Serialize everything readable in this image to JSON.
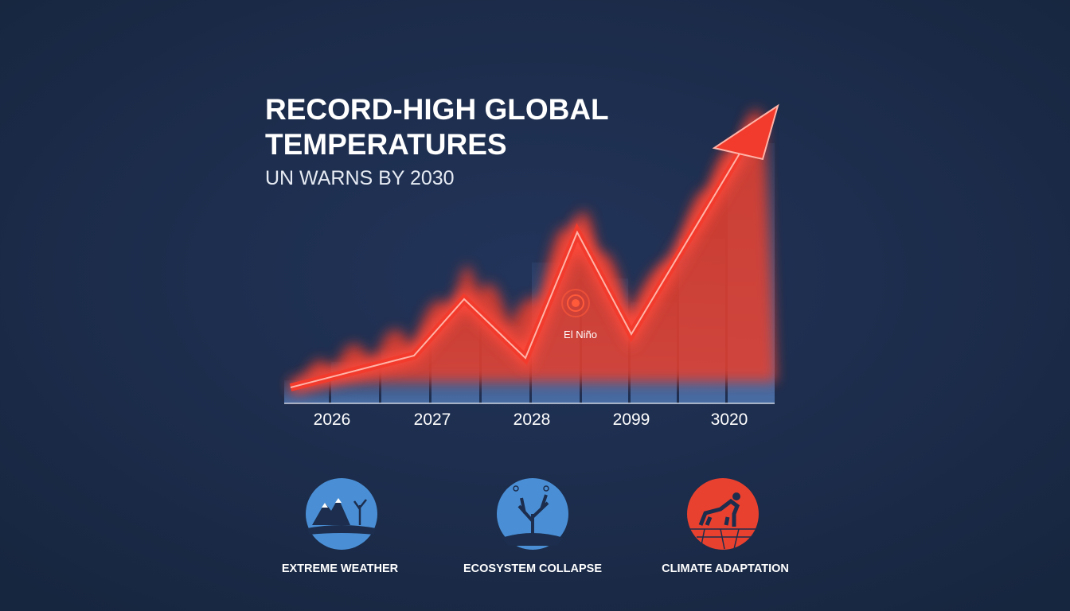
{
  "header": {
    "title_lines": [
      "RECORD-HIGH GLOBAL",
      "TEMPERATURES"
    ],
    "subtitle": "UN WARNS BY 2030"
  },
  "timeline": {
    "labels": [
      "2026",
      "2027",
      "2028",
      "2099",
      "3020"
    ],
    "annotation": "El Niño"
  },
  "icons": [
    {
      "label": "EXTREME WEATHER"
    },
    {
      "label": "ECOSYSTEM COLLAPSE"
    },
    {
      "label": "CLIMATE ADAPTATION"
    }
  ]
}
